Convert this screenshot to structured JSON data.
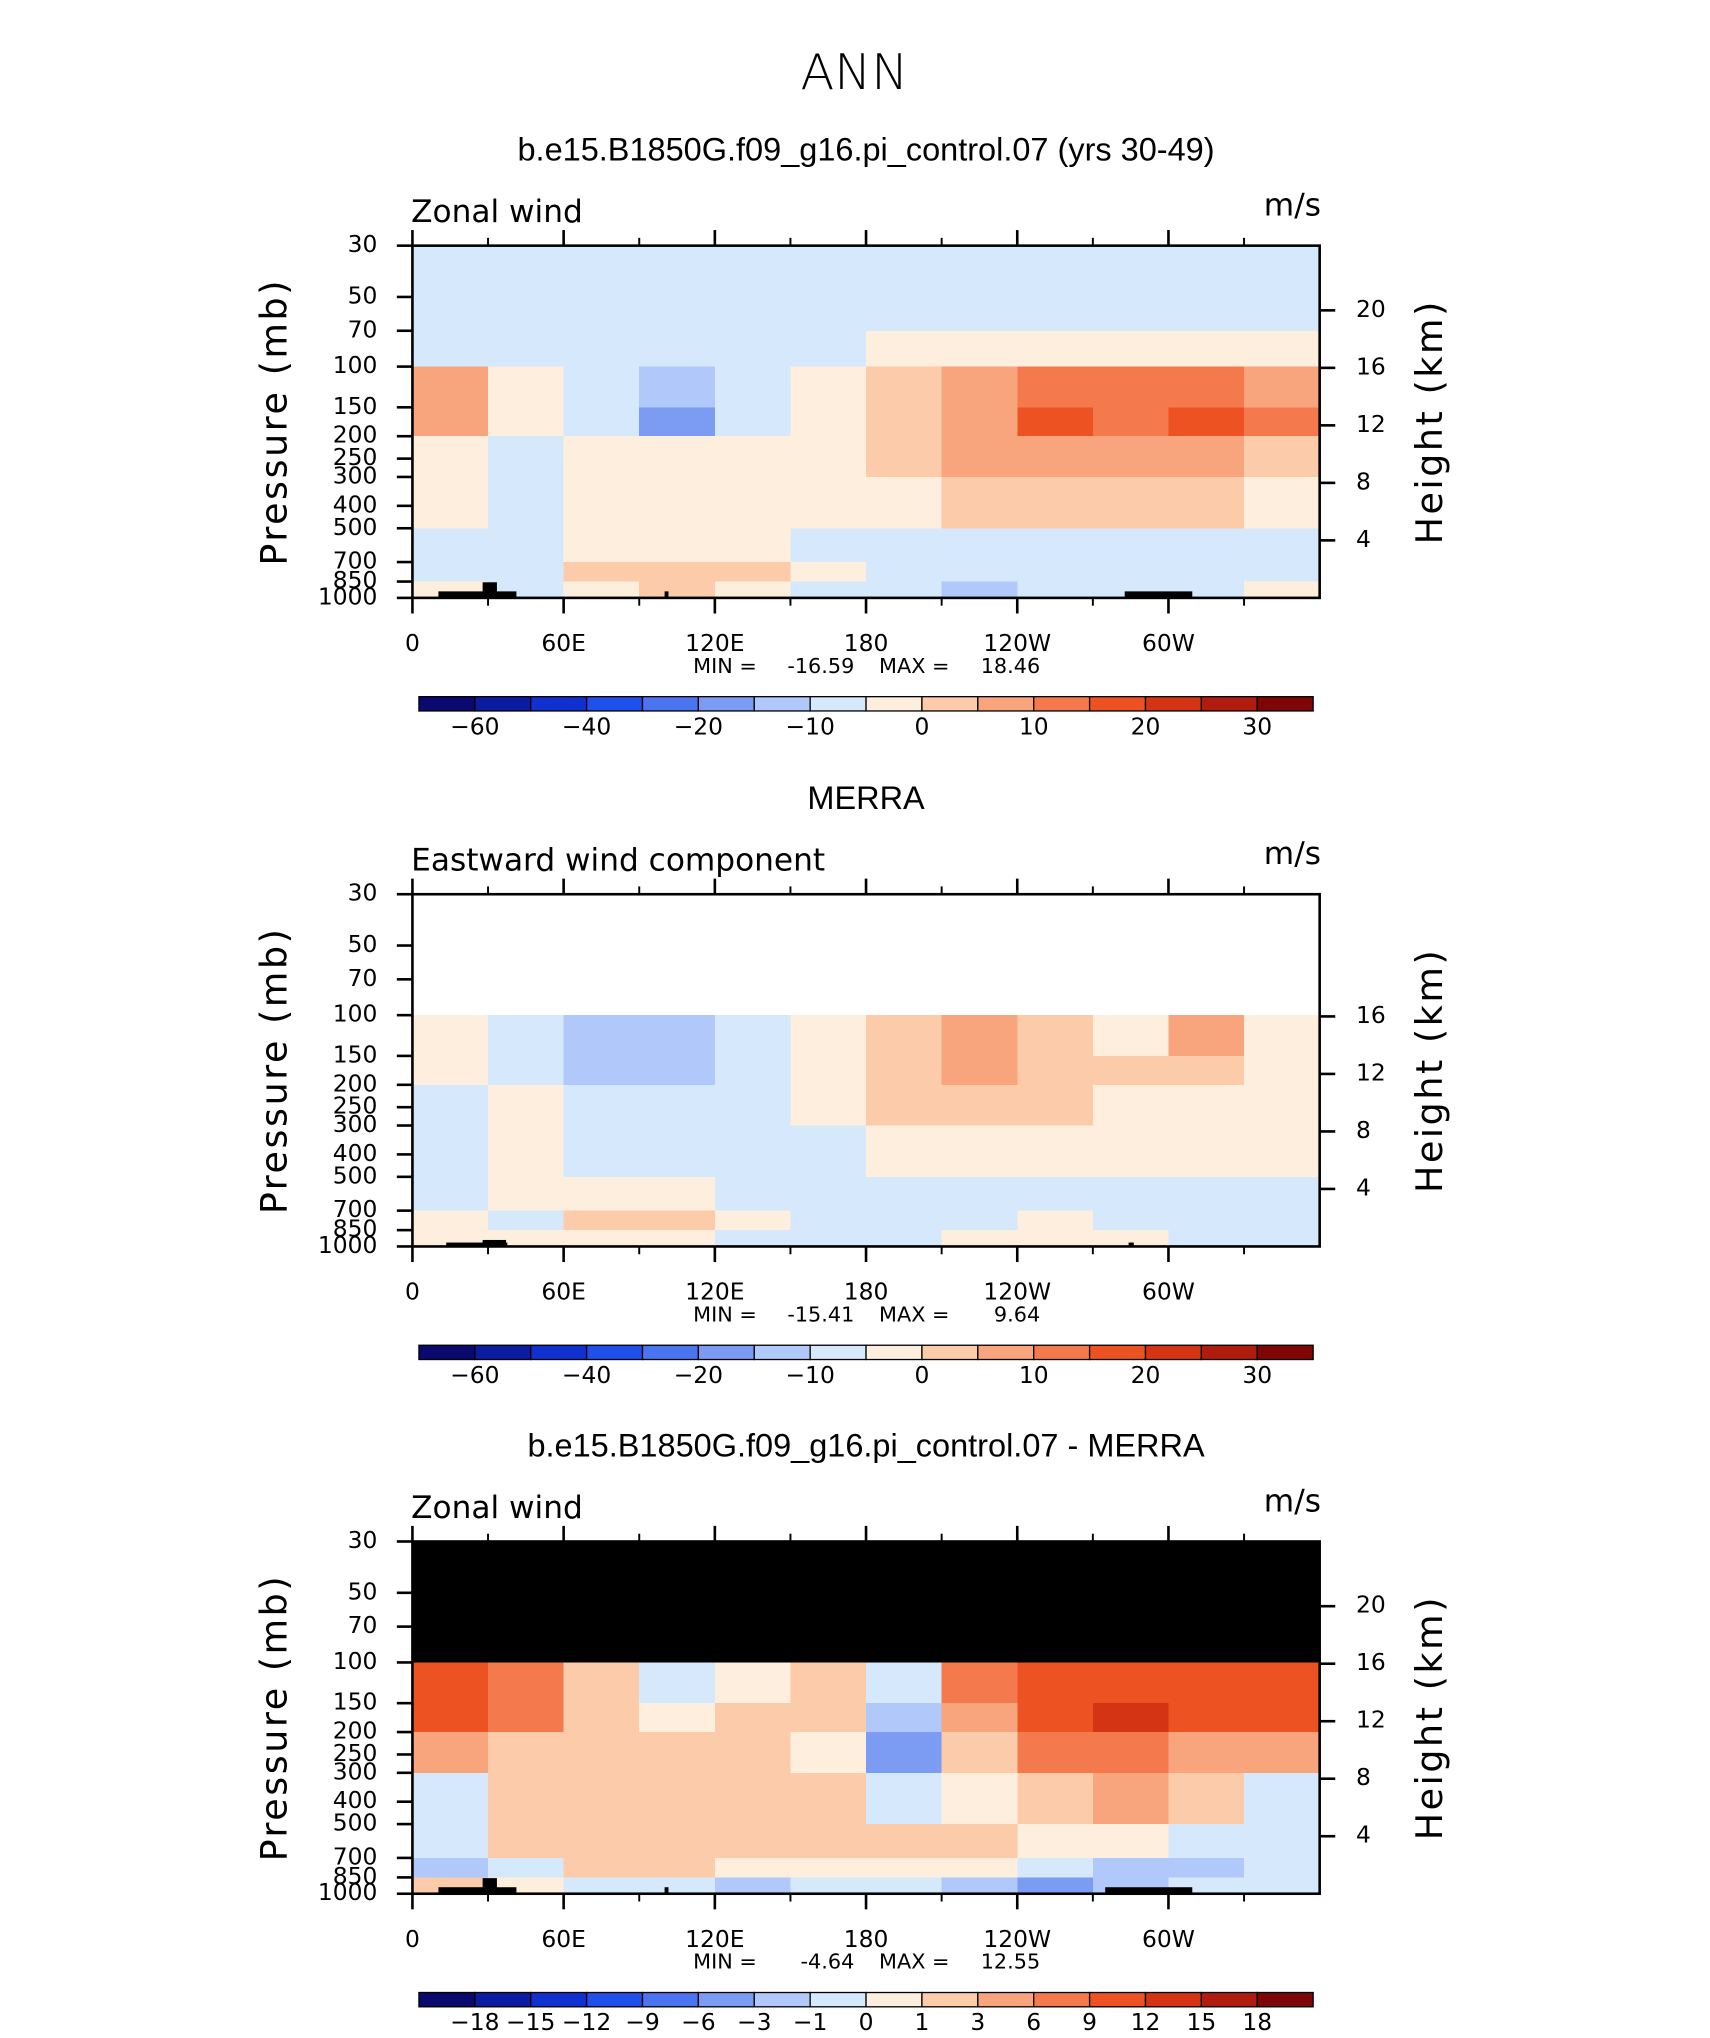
{
  "title": "ANN",
  "chart_data": [
    {
      "type": "contour",
      "title": "b.e15.B1850G.f09_g16.pi_control.07 (yrs 30-49)",
      "left_label": "Zonal wind",
      "units": "m/s",
      "ylabel": "Pressure (mb)",
      "y2label": "Height (km)",
      "log_y": true,
      "x_edges": [
        0,
        30,
        60,
        90,
        120,
        150,
        180,
        210,
        240,
        270,
        300,
        330,
        360
      ],
      "y_edges": [
        30,
        70,
        100,
        150,
        200,
        300,
        500,
        700,
        850,
        1000
      ],
      "values": [
        [
          -7,
          -7,
          -7,
          -7,
          -7,
          -7,
          -7,
          -7,
          -7,
          -7,
          -7,
          -7
        ],
        [
          -7,
          -7,
          -7,
          -7,
          -7,
          -7,
          -2,
          -2,
          -2,
          -2,
          -2,
          -2
        ],
        [
          7,
          -2,
          -7,
          -12,
          -7,
          -2,
          2,
          7,
          12,
          12,
          12,
          7
        ],
        [
          7,
          -2,
          -7,
          -17,
          -7,
          -2,
          2,
          7,
          17,
          12,
          17,
          12
        ],
        [
          -2,
          -7,
          -2,
          -2,
          -2,
          -2,
          2,
          7,
          7,
          7,
          7,
          2
        ],
        [
          -2,
          -7,
          -2,
          -2,
          -2,
          -2,
          -2,
          2,
          2,
          2,
          2,
          -2
        ],
        [
          -7,
          -7,
          -2,
          -2,
          -2,
          -7,
          -7,
          -7,
          -7,
          -7,
          -7,
          -7
        ],
        [
          -7,
          -7,
          2,
          2,
          2,
          -2,
          -7,
          -7,
          -7,
          -7,
          -7,
          -7
        ],
        [
          -2,
          -7,
          -2,
          2,
          -2,
          -7,
          -7,
          -12,
          -7,
          -7,
          -7,
          -2
        ]
      ],
      "missing_color": "#ffffff",
      "xlim": [
        0,
        360
      ],
      "ylim": [
        1000,
        30
      ],
      "y2lim": [
        0,
        24.5
      ],
      "xticks": [
        0,
        {
          "value": 60,
          "label": "60E"
        },
        {
          "value": 120,
          "label": "120E"
        },
        180,
        {
          "value": 240,
          "label": "120W"
        },
        {
          "value": 300,
          "label": "60W"
        }
      ],
      "xminorticks": [
        30,
        90,
        150,
        210,
        270,
        330
      ],
      "yticks": [
        30,
        50,
        70,
        100,
        150,
        200,
        250,
        300,
        400,
        500,
        700,
        850,
        1000
      ],
      "y2ticks": [
        4,
        8,
        12,
        16,
        20
      ],
      "min_label": "MIN =",
      "min": -16.59,
      "max_label": "MAX =",
      "max": 18.46,
      "colorbar": {
        "levels": [
          -60,
          -50,
          -40,
          -30,
          -20,
          -15,
          -10,
          -5,
          0,
          5,
          10,
          15,
          20,
          25,
          30
        ],
        "labeled": [
          {
            "value": -60,
            "label": "−60"
          },
          {
            "value": -40,
            "label": "−40"
          },
          {
            "value": -20,
            "label": "−20"
          },
          {
            "value": -10,
            "label": "−10"
          },
          0,
          10,
          20,
          30
        ],
        "colors": [
          "#0a0a6e",
          "#0c1ca0",
          "#1030d0",
          "#2050ec",
          "#4a74f0",
          "#7c9cf4",
          "#b0c8fa",
          "#d6e8fc",
          "#fdeedd",
          "#fccbaa",
          "#f8a47c",
          "#f47a4e",
          "#ec5222",
          "#d43414",
          "#b01c0e",
          "#7e0606"
        ]
      }
    },
    {
      "type": "contour",
      "title": "MERRA",
      "left_label": "Eastward wind component",
      "units": "m/s",
      "ylabel": "Pressure (mb)",
      "y2label": "Height (km)",
      "log_y": true,
      "x_edges": [
        0,
        30,
        60,
        90,
        120,
        150,
        180,
        210,
        240,
        270,
        300,
        330,
        360
      ],
      "y_edges": [
        30,
        70,
        100,
        150,
        200,
        300,
        500,
        700,
        850,
        1000
      ],
      "values": [
        [
          null,
          null,
          null,
          null,
          null,
          null,
          null,
          null,
          null,
          null,
          null,
          null
        ],
        [
          null,
          null,
          null,
          null,
          null,
          null,
          null,
          null,
          null,
          null,
          null,
          null
        ],
        [
          -2,
          -7,
          -12,
          -12,
          -7,
          -2,
          2,
          7,
          2,
          -2,
          7,
          -2
        ],
        [
          -2,
          -7,
          -12,
          -12,
          -7,
          -2,
          2,
          7,
          2,
          2,
          2,
          -2
        ],
        [
          -7,
          -2,
          -7,
          -7,
          -7,
          -2,
          2,
          2,
          2,
          -2,
          -2,
          -2
        ],
        [
          -7,
          -2,
          -7,
          -7,
          -7,
          -7,
          -2,
          -2,
          -2,
          -2,
          -2,
          -2
        ],
        [
          -7,
          -2,
          -2,
          -2,
          -7,
          -7,
          -7,
          -7,
          -7,
          -7,
          -7,
          -7
        ],
        [
          -2,
          -7,
          2,
          2,
          -2,
          -7,
          -7,
          -7,
          -2,
          -7,
          -7,
          -7
        ],
        [
          -2,
          -2,
          -2,
          -2,
          -7,
          -7,
          -7,
          -2,
          -2,
          -2,
          -7,
          -7
        ]
      ],
      "missing_color": "#ffffff",
      "xlim": [
        0,
        360
      ],
      "ylim": [
        1000,
        30
      ],
      "y2lim": [
        0,
        24.5
      ],
      "xticks": [
        0,
        {
          "value": 60,
          "label": "60E"
        },
        {
          "value": 120,
          "label": "120E"
        },
        180,
        {
          "value": 240,
          "label": "120W"
        },
        {
          "value": 300,
          "label": "60W"
        }
      ],
      "xminorticks": [
        30,
        90,
        150,
        210,
        270,
        330
      ],
      "yticks": [
        30,
        50,
        70,
        100,
        150,
        200,
        250,
        300,
        400,
        500,
        700,
        850,
        1000
      ],
      "y2ticks": [
        4,
        8,
        12,
        16
      ],
      "min_label": "MIN =",
      "min": -15.41,
      "max_label": "MAX =",
      "max": 9.64,
      "colorbar": {
        "levels": [
          -60,
          -50,
          -40,
          -30,
          -20,
          -15,
          -10,
          -5,
          0,
          5,
          10,
          15,
          20,
          25,
          30
        ],
        "labeled": [
          {
            "value": -60,
            "label": "−60"
          },
          {
            "value": -40,
            "label": "−40"
          },
          {
            "value": -20,
            "label": "−20"
          },
          {
            "value": -10,
            "label": "−10"
          },
          0,
          10,
          20,
          30
        ],
        "colors": [
          "#0a0a6e",
          "#0c1ca0",
          "#1030d0",
          "#2050ec",
          "#4a74f0",
          "#7c9cf4",
          "#b0c8fa",
          "#d6e8fc",
          "#fdeedd",
          "#fccbaa",
          "#f8a47c",
          "#f47a4e",
          "#ec5222",
          "#d43414",
          "#b01c0e",
          "#7e0606"
        ]
      }
    },
    {
      "type": "contour",
      "title": "b.e15.B1850G.f09_g16.pi_control.07 - MERRA",
      "left_label": "Zonal wind",
      "units": "m/s",
      "ylabel": "Pressure (mb)",
      "y2label": "Height (km)",
      "log_y": true,
      "x_edges": [
        0,
        30,
        60,
        90,
        120,
        150,
        180,
        210,
        240,
        270,
        300,
        330,
        360
      ],
      "y_edges": [
        30,
        70,
        100,
        150,
        200,
        300,
        500,
        700,
        850,
        1000
      ],
      "values": [
        [
          null,
          null,
          null,
          null,
          null,
          null,
          null,
          null,
          null,
          null,
          null,
          null
        ],
        [
          null,
          null,
          null,
          null,
          null,
          null,
          null,
          null,
          null,
          null,
          null,
          null
        ],
        [
          10,
          7,
          2,
          -0.5,
          0.5,
          2,
          -0.5,
          7,
          10,
          10,
          10,
          10
        ],
        [
          10,
          7,
          2,
          0.5,
          2,
          2,
          -2,
          4,
          10,
          13,
          10,
          10
        ],
        [
          4,
          2,
          2,
          2,
          2,
          0.5,
          -4,
          2,
          7,
          7,
          4,
          4
        ],
        [
          -0.5,
          2,
          2,
          2,
          2,
          2,
          -0.5,
          0.5,
          2,
          4,
          2,
          -0.5
        ],
        [
          -0.5,
          2,
          2,
          2,
          2,
          2,
          2,
          2,
          0.5,
          0.5,
          -0.5,
          -0.5
        ],
        [
          -2,
          -0.5,
          2,
          2,
          0.5,
          0.5,
          0.5,
          0.5,
          -0.5,
          -2,
          -2,
          -0.5
        ],
        [
          2,
          0.5,
          -0.5,
          -0.5,
          -2,
          -0.5,
          -0.5,
          -2,
          -4,
          -2,
          -0.5,
          -0.5
        ]
      ],
      "missing_color": "#000000",
      "xlim": [
        0,
        360
      ],
      "ylim": [
        1000,
        30
      ],
      "y2lim": [
        0,
        24.5
      ],
      "xticks": [
        0,
        {
          "value": 60,
          "label": "60E"
        },
        {
          "value": 120,
          "label": "120E"
        },
        180,
        {
          "value": 240,
          "label": "120W"
        },
        {
          "value": 300,
          "label": "60W"
        }
      ],
      "xminorticks": [
        30,
        90,
        150,
        210,
        270,
        330
      ],
      "yticks": [
        30,
        50,
        70,
        100,
        150,
        200,
        250,
        300,
        400,
        500,
        700,
        850,
        1000
      ],
      "y2ticks": [
        4,
        8,
        12,
        16,
        20
      ],
      "min_label": "MIN =",
      "min": -4.64,
      "max_label": "MAX =",
      "max": 12.55,
      "colorbar": {
        "levels": [
          -18,
          -15,
          -12,
          -9,
          -6,
          -3,
          -1,
          0,
          1,
          3,
          6,
          9,
          12,
          15,
          18
        ],
        "labeled": [
          {
            "value": -18,
            "label": "−18"
          },
          {
            "value": -15,
            "label": "−15"
          },
          {
            "value": -12,
            "label": "−12"
          },
          {
            "value": -9,
            "label": "−9"
          },
          {
            "value": -6,
            "label": "−6"
          },
          {
            "value": -3,
            "label": "−3"
          },
          {
            "value": -1,
            "label": "−1"
          },
          0,
          1,
          3,
          6,
          9,
          12,
          15,
          18
        ],
        "colors": [
          "#0a0a6e",
          "#0c1ca0",
          "#1030d0",
          "#2050ec",
          "#4a74f0",
          "#7c9cf4",
          "#b0c8fa",
          "#d6e8fc",
          "#fdeedd",
          "#fccbaa",
          "#f8a47c",
          "#f47a4e",
          "#ec5222",
          "#d43414",
          "#b01c0e",
          "#7e0606"
        ]
      }
    }
  ]
}
